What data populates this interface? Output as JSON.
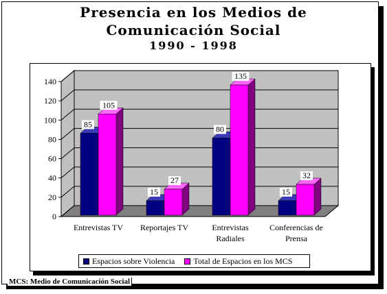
{
  "title_lines": [
    "Presencia en los Medios de",
    "Comunicación Social",
    "1990 - 1998"
  ],
  "footnote": "MCS: Medio de Comunicación Social",
  "chart_data": {
    "type": "bar",
    "categories": [
      [
        "Entrevistas TV"
      ],
      [
        "Reportajes TV"
      ],
      [
        "Entrevistas",
        "Radiales"
      ],
      [
        "Conferencias de",
        "Prensa"
      ]
    ],
    "series": [
      {
        "name": "Espacios sobre Violencia",
        "values": [
          85,
          15,
          80,
          15
        ],
        "color": "#000080",
        "top_color": "#3a3ab8",
        "side_color": "#00004a"
      },
      {
        "name": "Total de Espacios en los MCS",
        "values": [
          105,
          27,
          135,
          32
        ],
        "color": "#ff00ff",
        "top_color": "#ff66ff",
        "side_color": "#800080"
      }
    ],
    "ylim": [
      0,
      140
    ],
    "yticks": [
      0,
      20,
      40,
      60,
      80,
      100,
      120,
      140
    ],
    "grid": true,
    "legend_position": "bottom",
    "wall_color": "#c0c0c0",
    "floor_color": "#808080"
  }
}
